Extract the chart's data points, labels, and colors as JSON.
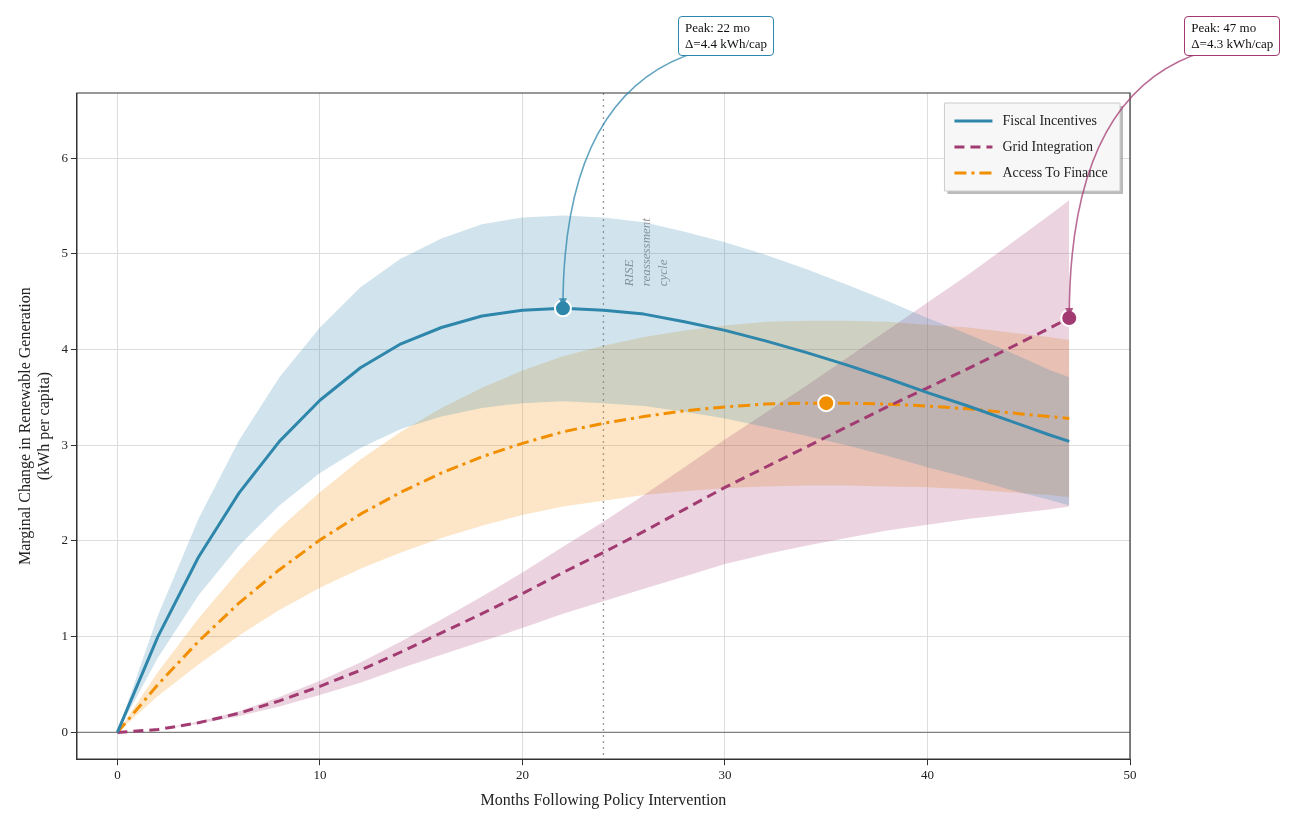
{
  "chart_data": {
    "type": "line",
    "xlabel": "Months Following Policy Intervention",
    "ylabel": "Marginal Change in Renewable Generation\n(kWh per capita)",
    "x": [
      0,
      2,
      4,
      6,
      8,
      10,
      12,
      14,
      16,
      18,
      20,
      22,
      24,
      26,
      28,
      30,
      32,
      34,
      36,
      38,
      40,
      42,
      44,
      46,
      47
    ],
    "series": [
      {
        "name": "Fiscal Incentives",
        "color": "#2e86ab",
        "line_style": "solid",
        "values": [
          0,
          1.0,
          1.83,
          2.5,
          3.04,
          3.47,
          3.81,
          4.06,
          4.23,
          4.35,
          4.41,
          4.43,
          4.41,
          4.37,
          4.29,
          4.2,
          4.09,
          3.97,
          3.84,
          3.7,
          3.55,
          3.41,
          3.26,
          3.11,
          3.04
        ],
        "upper": [
          0,
          1.22,
          2.23,
          3.05,
          3.71,
          4.23,
          4.65,
          4.95,
          5.16,
          5.31,
          5.38,
          5.4,
          5.38,
          5.33,
          5.23,
          5.12,
          4.99,
          4.84,
          4.68,
          4.51,
          4.33,
          4.16,
          3.98,
          3.79,
          3.71
        ],
        "lower": [
          0,
          0.78,
          1.43,
          1.95,
          2.37,
          2.71,
          2.97,
          3.17,
          3.3,
          3.39,
          3.44,
          3.46,
          3.44,
          3.41,
          3.35,
          3.28,
          3.19,
          3.1,
          3.0,
          2.89,
          2.77,
          2.66,
          2.54,
          2.43,
          2.37
        ]
      },
      {
        "name": "Grid Integration",
        "color": "#a23b72",
        "line_style": "dashed",
        "values": [
          0,
          0.03,
          0.1,
          0.2,
          0.33,
          0.48,
          0.65,
          0.84,
          1.04,
          1.24,
          1.45,
          1.67,
          1.88,
          2.1,
          2.33,
          2.56,
          2.77,
          2.98,
          3.19,
          3.4,
          3.6,
          3.8,
          4.01,
          4.22,
          4.33
        ],
        "upper": [
          0,
          0.03,
          0.11,
          0.22,
          0.37,
          0.54,
          0.73,
          0.95,
          1.18,
          1.42,
          1.67,
          1.94,
          2.2,
          2.48,
          2.77,
          3.06,
          3.34,
          3.62,
          3.91,
          4.2,
          4.49,
          4.78,
          5.09,
          5.4,
          5.56
        ],
        "lower": [
          0,
          0.03,
          0.09,
          0.17,
          0.27,
          0.39,
          0.52,
          0.67,
          0.81,
          0.95,
          1.09,
          1.24,
          1.37,
          1.5,
          1.63,
          1.76,
          1.86,
          1.95,
          2.03,
          2.11,
          2.17,
          2.23,
          2.28,
          2.33,
          2.36
        ]
      },
      {
        "name": "Access To Finance",
        "color": "#f18f01",
        "line_style": "dashdot",
        "values": [
          0,
          0.5,
          0.95,
          1.35,
          1.7,
          2.01,
          2.28,
          2.51,
          2.71,
          2.88,
          3.02,
          3.14,
          3.23,
          3.3,
          3.36,
          3.4,
          3.43,
          3.44,
          3.44,
          3.43,
          3.41,
          3.38,
          3.34,
          3.3,
          3.28
        ],
        "upper": [
          0,
          0.63,
          1.19,
          1.69,
          2.13,
          2.51,
          2.85,
          3.14,
          3.39,
          3.6,
          3.78,
          3.93,
          4.04,
          4.13,
          4.2,
          4.25,
          4.29,
          4.3,
          4.3,
          4.29,
          4.26,
          4.23,
          4.18,
          4.13,
          4.1
        ],
        "lower": [
          0,
          0.38,
          0.71,
          1.01,
          1.28,
          1.51,
          1.71,
          1.88,
          2.03,
          2.16,
          2.27,
          2.36,
          2.42,
          2.48,
          2.52,
          2.55,
          2.57,
          2.58,
          2.58,
          2.57,
          2.56,
          2.54,
          2.51,
          2.48,
          2.46
        ]
      },
      {
        "type": "scatter",
        "color": "#2e86ab",
        "x": [
          22
        ],
        "values": [
          4.43
        ]
      },
      {
        "type": "scatter",
        "color": "#a23b72",
        "x": [
          47
        ],
        "values": [
          4.33
        ]
      },
      {
        "type": "scatter",
        "color": "#f18f01",
        "x": [
          35
        ],
        "values": [
          3.44
        ]
      }
    ],
    "annotations": [
      {
        "text": "Peak: 22 mo\nΔ=4.4 kWh/cap",
        "x": 22,
        "y": 4.43
      },
      {
        "text": "Peak: 47 mo\nΔ=4.3 kWh/cap",
        "x": 47,
        "y": 4.33
      }
    ],
    "ref_lines": [
      {
        "axis": "x",
        "value": 24,
        "label": "RISE\nreassessment\ncycle",
        "color": "#999999",
        "line_style": "dotted"
      },
      {
        "axis": "y",
        "value": 0,
        "color": "#808080",
        "line_style": "solid"
      }
    ],
    "xlim": [
      -2,
      50
    ],
    "xticks": [
      0,
      10,
      20,
      30,
      40,
      50
    ],
    "ylim": [
      -0.28,
      6.68
    ],
    "yticks": [
      0,
      1,
      2,
      3,
      4,
      5,
      6
    ],
    "grid": true,
    "legend": "top right"
  }
}
